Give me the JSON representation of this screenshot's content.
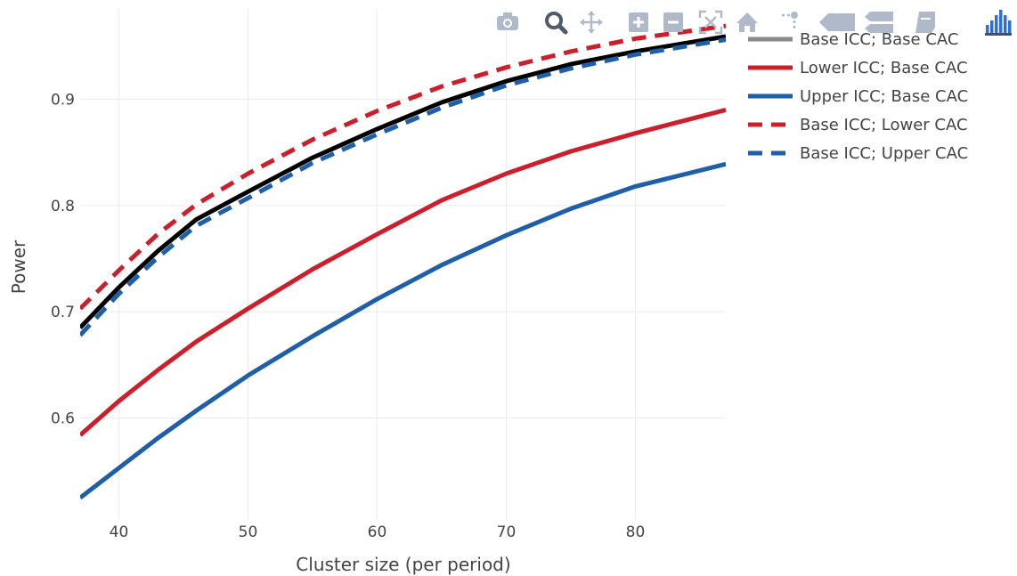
{
  "modebar": {
    "buttons": [
      {
        "name": "camera-icon",
        "label": "Download plot as a png"
      },
      {
        "name": "zoom-icon",
        "label": "Zoom"
      },
      {
        "name": "pan-icon",
        "label": "Pan"
      },
      {
        "name": "zoom-in-icon",
        "label": "Zoom in"
      },
      {
        "name": "zoom-out-icon",
        "label": "Zoom out"
      },
      {
        "name": "autoscale-icon",
        "label": "Autoscale"
      },
      {
        "name": "home-icon",
        "label": "Reset axes"
      },
      {
        "name": "spike-lines-icon",
        "label": "Toggle Spike Lines"
      },
      {
        "name": "hover-closest-icon",
        "label": "Show closest data on hover"
      },
      {
        "name": "hover-compare-icon",
        "label": "Compare data on hover"
      },
      {
        "name": "edit-icon",
        "label": "Edit in Chart Studio"
      },
      {
        "name": "plotly-logo-icon",
        "label": "Produced with Plotly"
      }
    ],
    "color": "#b0b9c9",
    "logo_color": "#3f4f75"
  },
  "chart_data": {
    "type": "line",
    "xlabel": "Cluster size (per period)",
    "ylabel": "Power",
    "xlim": [
      37,
      87
    ],
    "ylim": [
      0.505,
      0.985
    ],
    "xticks": [
      40,
      50,
      60,
      70,
      80
    ],
    "yticks": [
      0.6,
      0.7,
      0.8,
      0.9
    ],
    "xtick_labels": [
      "40",
      "50",
      "60",
      "70",
      "80"
    ],
    "ytick_labels": [
      "0.6",
      "0.7",
      "0.8",
      "0.9"
    ],
    "grid": true,
    "legend_position": "top-right",
    "x": [
      37,
      40,
      43,
      46,
      50,
      55,
      60,
      65,
      70,
      75,
      80,
      87
    ],
    "series": [
      {
        "name": "Base ICC; Base CAC",
        "color": "#000000",
        "dash": "solid",
        "legend_color": "#8a8a8a",
        "values": [
          0.685,
          0.723,
          0.757,
          0.787,
          0.813,
          0.845,
          0.872,
          0.897,
          0.917,
          0.933,
          0.945,
          0.959
        ]
      },
      {
        "name": "Lower ICC; Base CAC",
        "color": "#cc1f2b",
        "dash": "solid",
        "values": [
          0.584,
          0.616,
          0.645,
          0.672,
          0.703,
          0.74,
          0.773,
          0.805,
          0.83,
          0.851,
          0.868,
          0.89
        ]
      },
      {
        "name": "Upper ICC; Base CAC",
        "color": "#1f5ea8",
        "dash": "solid",
        "values": [
          0.525,
          0.553,
          0.581,
          0.607,
          0.64,
          0.677,
          0.712,
          0.744,
          0.772,
          0.797,
          0.818,
          0.839
        ]
      },
      {
        "name": "Base ICC; Lower CAC",
        "color": "#cc1f2b",
        "dash": "dash",
        "values": [
          0.703,
          0.739,
          0.773,
          0.801,
          0.83,
          0.862,
          0.889,
          0.912,
          0.93,
          0.945,
          0.957,
          0.969
        ]
      },
      {
        "name": "Base ICC; Upper CAC",
        "color": "#1f5ea8",
        "dash": "dash",
        "values": [
          0.678,
          0.717,
          0.751,
          0.781,
          0.807,
          0.84,
          0.867,
          0.892,
          0.913,
          0.929,
          0.942,
          0.956
        ]
      }
    ]
  }
}
